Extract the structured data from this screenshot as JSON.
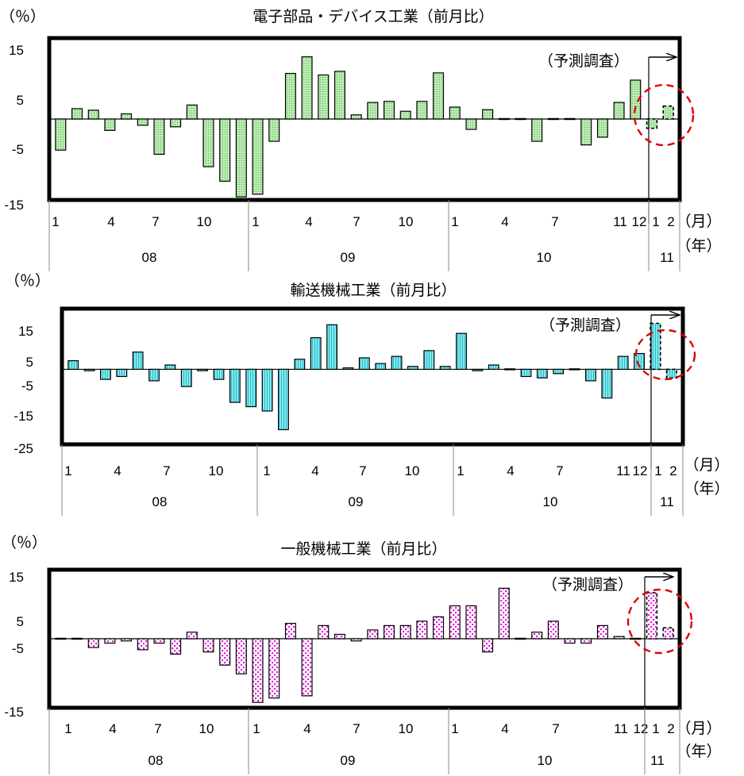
{
  "colors": {
    "electronics_fill": "#b8ecb0",
    "electronics_dot": "#5aa85a",
    "transport_fill": "#7fe9ef",
    "transport_line": "#30b8c4",
    "machinery_fill": "#ffffff",
    "machinery_dot": "#e020d8",
    "frame": "#000000",
    "circle": "#e00000"
  },
  "chart_data": [
    {
      "type": "bar",
      "title": "電子部品・デバイス工業（前月比）",
      "unit_label": "（％）",
      "forecast_label": "（予測調査）",
      "ylim": [
        -15,
        15
      ],
      "yticks": [
        "15",
        "5",
        "-5",
        "-15"
      ],
      "ytick_values": [
        15,
        5,
        -5,
        -15
      ],
      "x_month_labels": [
        "1",
        "4",
        "7",
        "10",
        "1",
        "4",
        "7",
        "10",
        "1",
        "4",
        "7",
        "11",
        "12",
        "1",
        "2"
      ],
      "x_year_labels": [
        "08",
        "09",
        "10",
        "11"
      ],
      "month_unit": "（月）",
      "year_unit": "（年）",
      "forecast_months": [
        "2011-01",
        "2011-02"
      ],
      "values": [
        -6.0,
        2.0,
        1.7,
        -2.2,
        1.0,
        -1.2,
        -6.8,
        -1.5,
        2.7,
        -9.2,
        -12.0,
        -15.0,
        -14.5,
        -4.3,
        8.8,
        12.0,
        8.5,
        9.2,
        0.8,
        3.2,
        3.4,
        1.5,
        3.4,
        8.9,
        2.3,
        -2.0,
        1.8,
        0.0,
        0.0,
        -4.3,
        0.0,
        0.0,
        -5.0,
        -3.5,
        3.2,
        7.5,
        -1.8,
        2.5
      ]
    },
    {
      "type": "bar",
      "title": "輸送機械工業（前月比）",
      "unit_label": "（％）",
      "forecast_label": "（予測調査）",
      "ylim": [
        -25,
        20
      ],
      "yticks": [
        "15",
        "5",
        "-5",
        "-15",
        "-25"
      ],
      "ytick_values": [
        15,
        5,
        -5,
        -15,
        -25
      ],
      "x_month_labels": [
        "1",
        "4",
        "7",
        "10",
        "1",
        "4",
        "7",
        "10",
        "1",
        "4",
        "7",
        "11",
        "12",
        "1",
        "2"
      ],
      "x_year_labels": [
        "08",
        "09",
        "10",
        "11"
      ],
      "month_unit": "（月）",
      "year_unit": "（年）",
      "forecast_months": [
        "2011-01",
        "2011-02"
      ],
      "values": [
        3.0,
        -0.5,
        -3.5,
        -2.5,
        6.0,
        -4.0,
        1.5,
        -6.0,
        -0.5,
        -3.5,
        -11.5,
        -13.0,
        -14.5,
        -21.0,
        3.5,
        11.0,
        15.5,
        0.5,
        4.0,
        2.0,
        4.5,
        1.0,
        6.5,
        1.0,
        12.5,
        -0.5,
        1.5,
        0.0,
        -2.5,
        -3.0,
        -1.5,
        0.0,
        -4.0,
        -10.0,
        4.5,
        5.5,
        16.0,
        -3.0
      ]
    },
    {
      "type": "bar",
      "title": "一般機械工業（前月比）",
      "unit_label": "（％）",
      "forecast_label": "（予測調査）",
      "ylim": [
        -15,
        15
      ],
      "yticks": [
        "15",
        "5",
        "-5",
        "-15"
      ],
      "ytick_values": [
        15,
        5,
        -5,
        -15
      ],
      "x_month_labels": [
        "1",
        "4",
        "7",
        "10",
        "1",
        "4",
        "7",
        "10",
        "1",
        "4",
        "7",
        "11",
        "12",
        "1",
        "2"
      ],
      "x_year_labels": [
        "08",
        "09",
        "10",
        "11"
      ],
      "month_unit": "（月）",
      "year_unit": "（年）",
      "forecast_months": [
        "2011-01",
        "2011-02"
      ],
      "values": [
        0.0,
        0.0,
        -2.0,
        -1.0,
        -0.5,
        -2.5,
        -1.0,
        -3.5,
        1.5,
        -3.0,
        -6.0,
        -8.0,
        -14.5,
        -13.5,
        3.5,
        -13.0,
        3.0,
        1.0,
        -0.5,
        2.0,
        3.0,
        3.0,
        4.0,
        5.0,
        7.5,
        7.5,
        -3.0,
        11.5,
        0.0,
        1.5,
        4.0,
        -1.0,
        -1.0,
        3.0,
        0.5,
        0.0,
        10.5,
        2.5
      ]
    }
  ]
}
